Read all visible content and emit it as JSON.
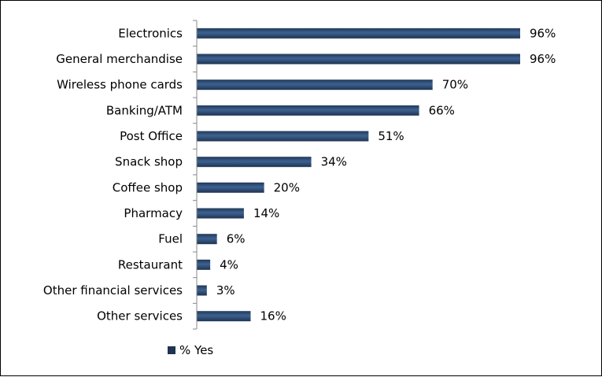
{
  "chart_data": {
    "type": "bar",
    "orientation": "horizontal",
    "categories": [
      "Electronics",
      "General merchandise",
      "Wireless phone cards",
      "Banking/ATM",
      "Post Office",
      "Snack shop",
      "Coffee shop",
      "Pharmacy",
      "Fuel",
      "Restaurant",
      "Other financial services",
      "Other services"
    ],
    "series": [
      {
        "name": "% Yes",
        "values": [
          96,
          96,
          70,
          66,
          51,
          34,
          20,
          14,
          6,
          4,
          3,
          16
        ],
        "color": "#34547c"
      }
    ],
    "data_labels": [
      "96%",
      "96%",
      "70%",
      "66%",
      "51%",
      "34%",
      "20%",
      "14%",
      "6%",
      "4%",
      "3%",
      "16%"
    ],
    "xlim": [
      0,
      100
    ],
    "grid": false,
    "legend": {
      "position": "bottom",
      "entries": [
        "% Yes"
      ]
    }
  }
}
